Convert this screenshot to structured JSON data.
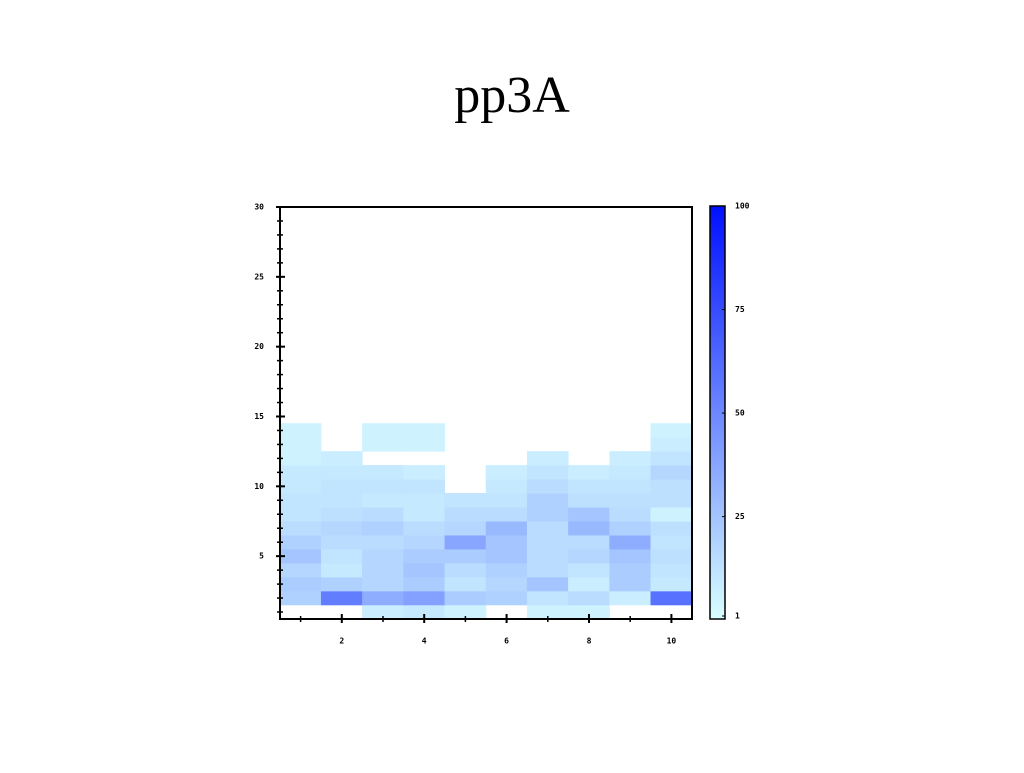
{
  "chart_data": {
    "type": "heatmap",
    "title": "pp3A",
    "x": [
      1,
      2,
      3,
      4,
      5,
      6,
      7,
      8,
      9,
      10
    ],
    "y": [
      1,
      2,
      3,
      4,
      5,
      6,
      7,
      8,
      9,
      10,
      11,
      12,
      13,
      14
    ],
    "z": [
      [
        null,
        null,
        8,
        10,
        6,
        null,
        6,
        6,
        null,
        null
      ],
      [
        20,
        55,
        35,
        40,
        22,
        20,
        12,
        15,
        8,
        60
      ],
      [
        22,
        20,
        18,
        22,
        12,
        18,
        25,
        8,
        22,
        10
      ],
      [
        18,
        10,
        18,
        25,
        15,
        20,
        15,
        12,
        22,
        12
      ],
      [
        25,
        12,
        18,
        22,
        22,
        25,
        15,
        18,
        25,
        14
      ],
      [
        20,
        15,
        15,
        18,
        38,
        25,
        15,
        15,
        35,
        12
      ],
      [
        15,
        18,
        20,
        15,
        18,
        30,
        15,
        30,
        20,
        14
      ],
      [
        12,
        14,
        15,
        10,
        15,
        15,
        20,
        25,
        15,
        6
      ],
      [
        12,
        12,
        10,
        10,
        12,
        12,
        20,
        14,
        14,
        14
      ],
      [
        10,
        12,
        12,
        12,
        null,
        10,
        15,
        12,
        12,
        14
      ],
      [
        10,
        10,
        10,
        8,
        null,
        8,
        12,
        8,
        10,
        18
      ],
      [
        6,
        8,
        null,
        null,
        null,
        null,
        8,
        null,
        8,
        12
      ],
      [
        6,
        null,
        6,
        6,
        null,
        null,
        null,
        null,
        null,
        8
      ],
      [
        6,
        null,
        6,
        6,
        null,
        null,
        null,
        null,
        null,
        6
      ]
    ],
    "xlim": [
      0.5,
      10.5
    ],
    "xticks": [
      2,
      4,
      6,
      8,
      10
    ],
    "xminorticks": [
      1,
      3,
      5,
      7,
      9
    ],
    "ylim": [
      0.5,
      30
    ],
    "yticks": [
      5,
      10,
      15,
      20,
      25,
      30
    ],
    "yminorticks": [
      1,
      2,
      3,
      4,
      6,
      7,
      8,
      9,
      11,
      12,
      13,
      14,
      16,
      17,
      18,
      19,
      21,
      22,
      23,
      24,
      26,
      27,
      28,
      29
    ],
    "clim": [
      1,
      100
    ],
    "cticks": [
      1,
      25,
      50,
      75,
      100
    ],
    "colormap": [
      "#d9ffff",
      "#0010ff"
    ]
  }
}
